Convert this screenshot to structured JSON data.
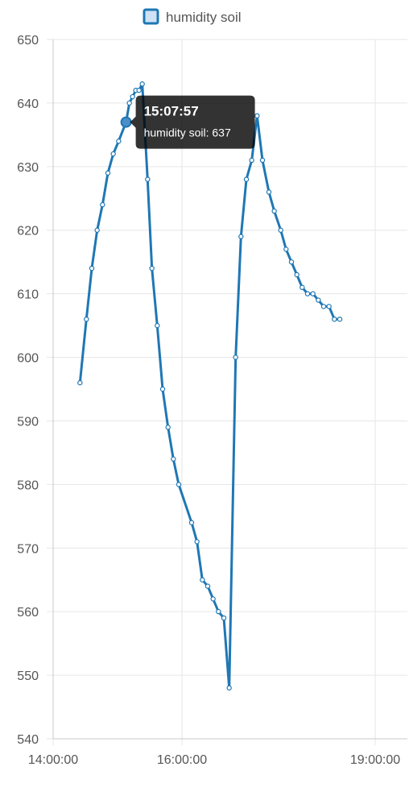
{
  "chart_data": {
    "type": "line",
    "x_unit": "time",
    "xlim": [
      "14:00:00",
      "19:30:00"
    ],
    "ylim": [
      540,
      650
    ],
    "y_ticks": [
      540,
      550,
      560,
      570,
      580,
      590,
      600,
      610,
      620,
      630,
      640,
      650
    ],
    "x_ticks": [
      "14:00:00",
      "16:00:00",
      "19:00:00"
    ],
    "grid": true,
    "legend": {
      "position": "top-center"
    },
    "series": [
      {
        "name": "humidity soil",
        "color": "#1f77b4",
        "fill": "#cfe2f3",
        "points": [
          [
            "14:25:00",
            596
          ],
          [
            "14:31:00",
            606
          ],
          [
            "14:36:00",
            614
          ],
          [
            "14:41:00",
            620
          ],
          [
            "14:46:00",
            624
          ],
          [
            "14:51:00",
            629
          ],
          [
            "14:56:00",
            632
          ],
          [
            "15:01:00",
            634
          ],
          [
            "15:07:57",
            637
          ],
          [
            "15:11:00",
            640
          ],
          [
            "15:14:00",
            641
          ],
          [
            "15:17:00",
            642
          ],
          [
            "15:20:00",
            642
          ],
          [
            "15:23:00",
            643
          ],
          [
            "15:28:00",
            628
          ],
          [
            "15:32:00",
            614
          ],
          [
            "15:37:00",
            605
          ],
          [
            "15:42:00",
            595
          ],
          [
            "15:47:00",
            589
          ],
          [
            "15:52:00",
            584
          ],
          [
            "15:57:00",
            580
          ],
          [
            "16:09:00",
            574
          ],
          [
            "16:14:00",
            571
          ],
          [
            "16:19:00",
            565
          ],
          [
            "16:24:00",
            564
          ],
          [
            "16:29:00",
            562
          ],
          [
            "16:34:00",
            560
          ],
          [
            "16:39:00",
            559
          ],
          [
            "16:44:00",
            548
          ],
          [
            "16:50:00",
            600
          ],
          [
            "16:55:00",
            619
          ],
          [
            "17:00:00",
            628
          ],
          [
            "17:05:00",
            631
          ],
          [
            "17:10:00",
            638
          ],
          [
            "17:15:00",
            631
          ],
          [
            "17:21:00",
            626
          ],
          [
            "17:26:00",
            623
          ],
          [
            "17:32:00",
            620
          ],
          [
            "17:37:00",
            617
          ],
          [
            "17:42:00",
            615
          ],
          [
            "17:47:00",
            613
          ],
          [
            "17:52:00",
            611
          ],
          [
            "17:57:00",
            610
          ],
          [
            "18:02:00",
            610
          ],
          [
            "18:07:00",
            609
          ],
          [
            "18:12:00",
            608
          ],
          [
            "18:17:00",
            608
          ],
          [
            "18:22:00",
            606
          ],
          [
            "18:27:00",
            606
          ]
        ]
      }
    ],
    "tooltip": {
      "title": "15:07:57",
      "label": "humidity soil: 637",
      "point_index": 8
    }
  }
}
